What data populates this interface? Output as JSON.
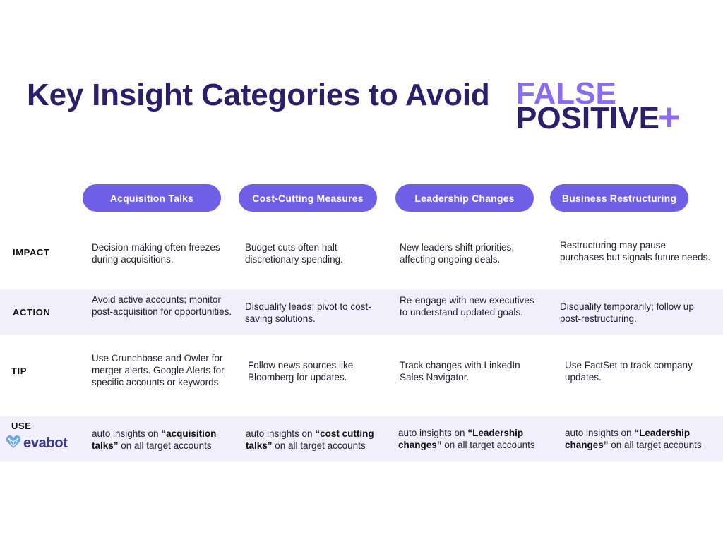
{
  "title": {
    "main": "Key Insight Categories to Avoid",
    "false_word": "FALSE",
    "positive_word": "POSITIVE",
    "plus": "+"
  },
  "columns": [
    "Acquisition Talks",
    "Cost-Cutting Measures",
    "Leadership Changes",
    "Business Restructuring"
  ],
  "rows": {
    "impact": {
      "label": "IMPACT",
      "cells": [
        "Decision-making often freezes during acquisitions.",
        "Budget cuts often halt discretionary spending.",
        "New leaders shift priorities, affecting ongoing deals.",
        "Restructuring may pause purchases but signals future needs."
      ]
    },
    "action": {
      "label": "ACTION",
      "cells": [
        "Avoid active accounts; monitor post-acquisition for opportunities.",
        "Disqualify leads; pivot to cost-saving solutions.",
        "Re-engage with new executives to understand updated goals.",
        "Disqualify temporarily; follow up post-restructuring."
      ]
    },
    "tip": {
      "label": "TIP",
      "cells": [
        "Use Crunchbase and Owler for merger alerts.  Google Alerts for specific accounts or keywords",
        "Follow news sources like Bloomberg for updates.",
        "Track changes with LinkedIn Sales Navigator.",
        "Use FactSet to track company updates."
      ]
    },
    "use": {
      "label": "USE",
      "logo_text": "evabot",
      "logo_icon": "heart-network-icon",
      "cells": [
        {
          "pre": "auto insights on ",
          "bold": "“acquisition talks”",
          "post": " on all target accounts"
        },
        {
          "pre": "auto insights on ",
          "bold": "“cost cutting talks”",
          "post": " on all target accounts"
        },
        {
          "pre": "auto insights on ",
          "bold": "“Leadership changes”",
          "post": " on all target accounts"
        },
        {
          "pre": "auto insights on ",
          "bold": "“Leadership changes”",
          "post": " on all target accounts"
        }
      ]
    }
  },
  "colors": {
    "title": "#2a1f6b",
    "accent": "#8b6cf0",
    "pill": "#6f5ee6",
    "band": "#f1effc"
  }
}
